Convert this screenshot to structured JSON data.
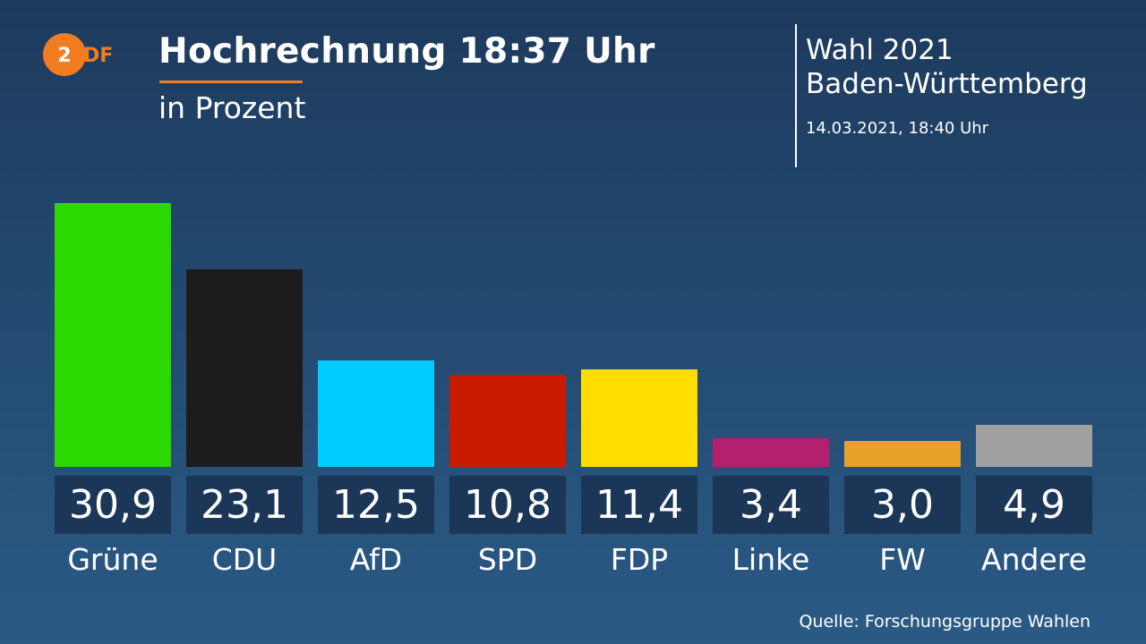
{
  "header": {
    "logo": "ZDF",
    "title": "Hochrechnung 18:37 Uhr",
    "subtitle": "in Prozent"
  },
  "election": {
    "line1": "Wahl 2021",
    "line2": "Baden-Württemberg",
    "timestamp": "14.03.2021, 18:40 Uhr"
  },
  "footer": {
    "source": "Quelle: Forschungsgruppe Wahlen"
  },
  "colors": {
    "accent": "#f47c20",
    "value_box": "#1c3658"
  },
  "chart_data": {
    "type": "bar",
    "title": "Hochrechnung 18:37 Uhr",
    "subtitle": "in Prozent",
    "categories": [
      "Grüne",
      "CDU",
      "AfD",
      "SPD",
      "FDP",
      "Linke",
      "FW",
      "Andere"
    ],
    "values": [
      30.9,
      23.1,
      12.5,
      10.8,
      11.4,
      3.4,
      3.0,
      4.9
    ],
    "value_labels": [
      "30,9",
      "23,1",
      "12,5",
      "10,8",
      "11,4",
      "3,4",
      "3,0",
      "4,9"
    ],
    "colors": [
      "#2bd800",
      "#1c1c1c",
      "#00ccff",
      "#c91a00",
      "#ffdd00",
      "#b4206b",
      "#e8a128",
      "#a0a0a0"
    ],
    "ylim": [
      0,
      30.9
    ],
    "grid": false
  }
}
